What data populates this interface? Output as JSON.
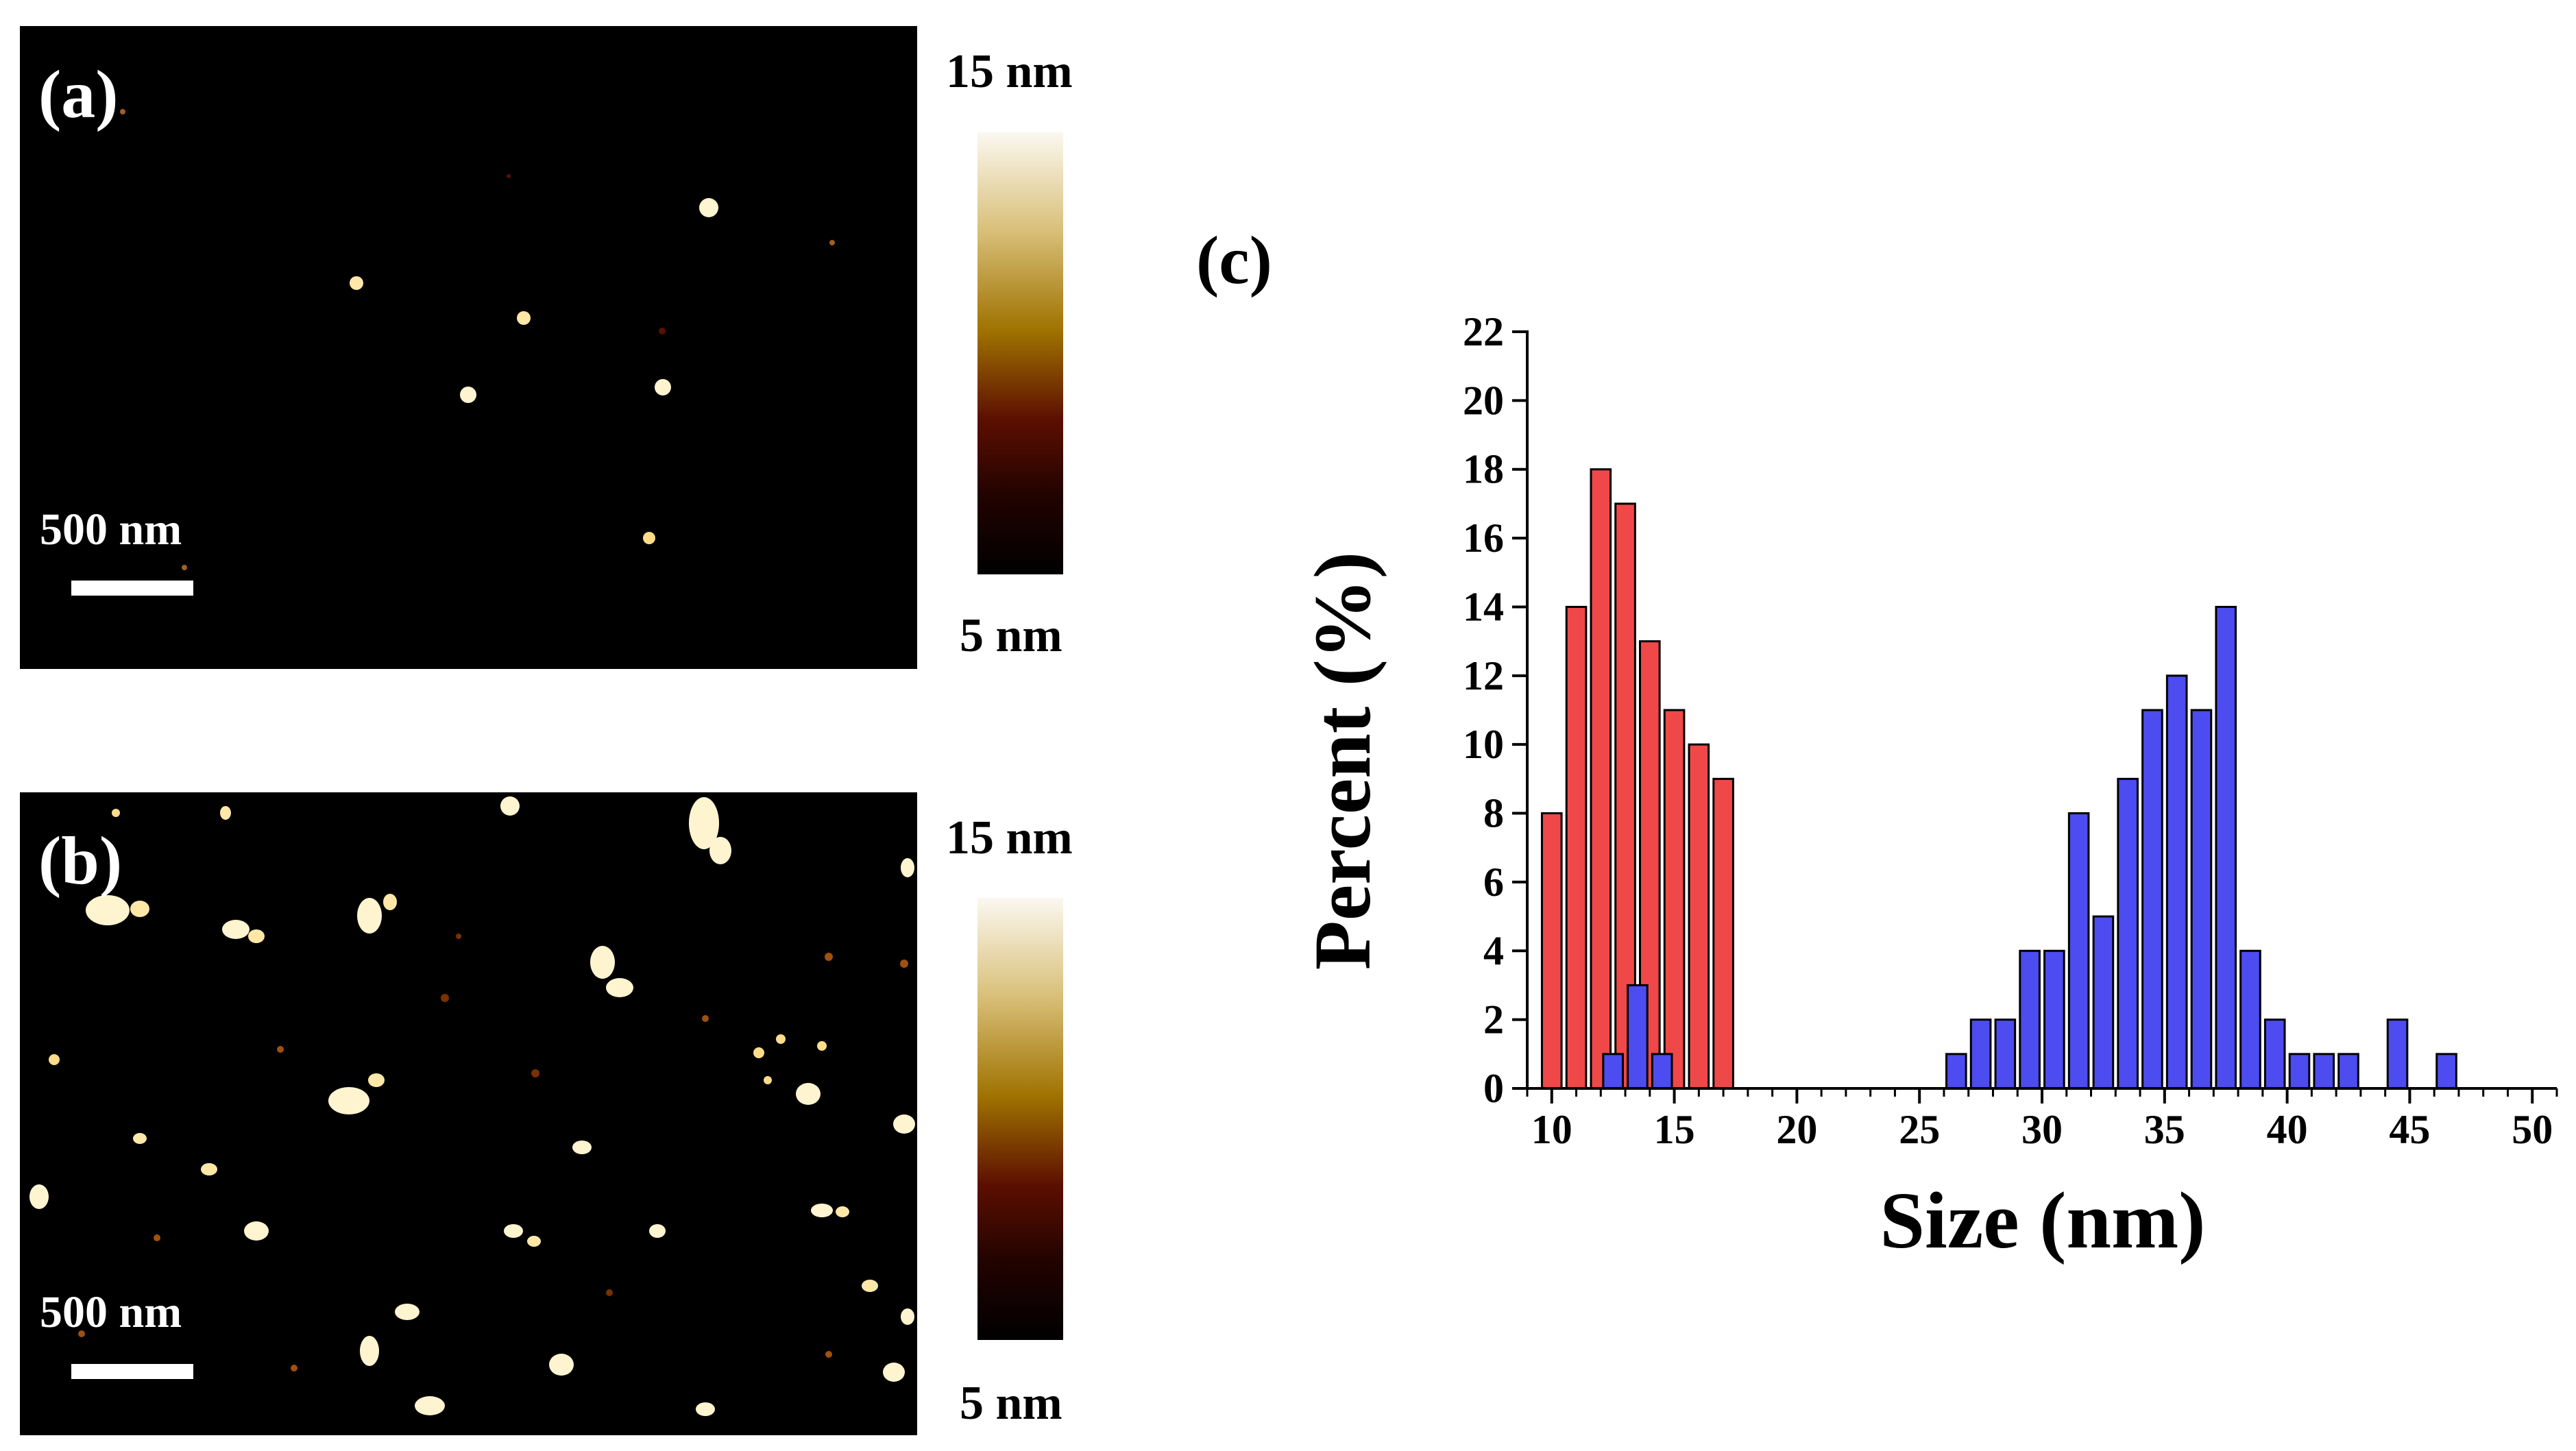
{
  "panels": {
    "a": {
      "label": "(a)",
      "scale_label": "500 nm",
      "cbar_max": "15 nm",
      "cbar_min": "5 nm"
    },
    "b": {
      "label": "(b)",
      "scale_label": "500 nm",
      "cbar_max": "15 nm",
      "cbar_min": "5 nm"
    },
    "c": {
      "label": "(c)"
    }
  },
  "colors": {
    "red": "#f04848",
    "blue": "#4c4cf0"
  },
  "chart_data": {
    "type": "bar",
    "title": "",
    "xlabel": "Size (nm)",
    "ylabel": "Percent (%)",
    "xlim": [
      9,
      51
    ],
    "ylim": [
      0,
      22
    ],
    "xticks": [
      10,
      15,
      20,
      25,
      30,
      35,
      40,
      45,
      50
    ],
    "yticks": [
      0,
      2,
      4,
      6,
      8,
      10,
      12,
      14,
      16,
      18,
      20,
      22
    ],
    "bar_width": 0.8,
    "series": [
      {
        "name": "red",
        "x": [
          10,
          11,
          12,
          13,
          14,
          15,
          16,
          17
        ],
        "values": [
          8,
          14,
          18,
          17,
          13,
          11,
          10,
          9
        ]
      },
      {
        "name": "blue",
        "x": [
          12.5,
          13.5,
          14.5,
          26.5,
          27.5,
          28.5,
          29.5,
          30.5,
          31.5,
          32.5,
          33.5,
          34.5,
          35.5,
          36.5,
          37.5,
          38.5,
          39.5,
          40.5,
          41.5,
          42.5,
          44.5,
          46.5
        ],
        "values": [
          1,
          3,
          1,
          1,
          2,
          2,
          4,
          4,
          8,
          5,
          9,
          11,
          12,
          11,
          14,
          4,
          2,
          1,
          1,
          1,
          2,
          1
        ]
      }
    ]
  }
}
